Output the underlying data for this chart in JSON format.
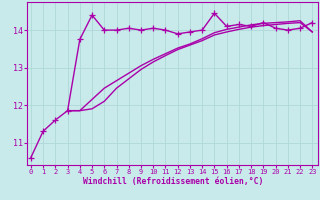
{
  "xlabel": "Windchill (Refroidissement éolien,°C)",
  "x_ticks": [
    0,
    1,
    2,
    3,
    4,
    5,
    6,
    7,
    8,
    9,
    10,
    11,
    12,
    13,
    14,
    15,
    16,
    17,
    18,
    19,
    20,
    21,
    22,
    23
  ],
  "y_ticks": [
    11,
    12,
    13,
    14
  ],
  "ylim": [
    10.4,
    14.75
  ],
  "xlim": [
    -0.3,
    23.5
  ],
  "bg_color": "#c8eaea",
  "grid_color": "#b0d8d8",
  "line_color": "#aa00aa",
  "line_width": 1.0,
  "marker": "+",
  "marker_size": 4,
  "series1_x": [
    0,
    1,
    2,
    3,
    4,
    5,
    6,
    7,
    8,
    9,
    10,
    11,
    12,
    13,
    14,
    15,
    16,
    17,
    18,
    19,
    20,
    21,
    22,
    23
  ],
  "series1_y": [
    10.6,
    11.3,
    11.6,
    11.85,
    13.75,
    14.4,
    14.0,
    14.0,
    14.05,
    14.0,
    14.05,
    14.0,
    13.9,
    13.95,
    14.0,
    14.45,
    14.1,
    14.15,
    14.1,
    14.2,
    14.05,
    14.0,
    14.05,
    14.2
  ],
  "series2_x": [
    3,
    4,
    5,
    6,
    7,
    8,
    9,
    10,
    11,
    12,
    13,
    14,
    15,
    16,
    17,
    18,
    19,
    20,
    21,
    22,
    23
  ],
  "series2_y": [
    11.85,
    11.85,
    11.9,
    12.1,
    12.45,
    12.7,
    12.95,
    13.15,
    13.32,
    13.48,
    13.6,
    13.72,
    13.87,
    13.95,
    14.02,
    14.08,
    14.12,
    14.15,
    14.18,
    14.2,
    13.95
  ],
  "series3_x": [
    3,
    4,
    5,
    6,
    7,
    8,
    9,
    10,
    11,
    12,
    13,
    14,
    15,
    16,
    17,
    18,
    19,
    20,
    21,
    22,
    23
  ],
  "series3_y": [
    11.85,
    11.85,
    12.15,
    12.45,
    12.65,
    12.85,
    13.05,
    13.22,
    13.37,
    13.52,
    13.63,
    13.77,
    13.93,
    14.02,
    14.08,
    14.14,
    14.18,
    14.2,
    14.22,
    14.25,
    13.95
  ]
}
